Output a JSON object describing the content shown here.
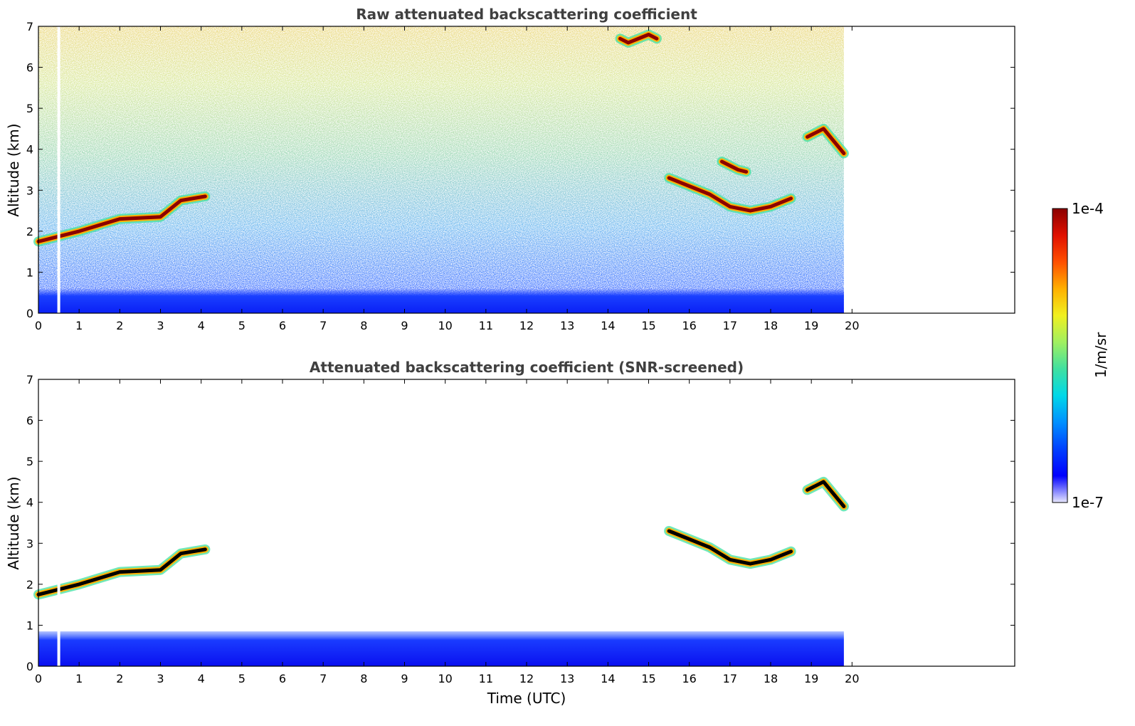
{
  "chart_data": [
    {
      "type": "heatmap",
      "id": "raw",
      "title": "Raw attenuated backscattering coefficient",
      "xlabel": "",
      "ylabel": "Altitude (km)",
      "xlim": [
        0,
        24
      ],
      "ylim": [
        0,
        7
      ],
      "xticks": [
        0,
        1,
        2,
        3,
        4,
        5,
        6,
        7,
        8,
        9,
        10,
        11,
        12,
        13,
        14,
        15,
        16,
        17,
        18,
        19,
        20
      ],
      "yticks": [
        0,
        1,
        2,
        3,
        4,
        5,
        6,
        7
      ],
      "data_end_time": 19.8,
      "gap_time": 0.5,
      "layers": [
        {
          "name": "boundary layer",
          "t_start": 0,
          "t_end": 19.8,
          "alt_km": [
            0,
            0.6
          ]
        },
        {
          "name": "morning cloud",
          "t": [
            0,
            1,
            2,
            3,
            3.5,
            4.1
          ],
          "alt_km": [
            1.75,
            2.0,
            2.3,
            2.35,
            2.75,
            2.85
          ]
        },
        {
          "name": "afternoon cloud",
          "t": [
            15.5,
            16.0,
            16.5,
            17.0,
            17.5,
            18.0,
            18.5
          ],
          "alt_km": [
            3.3,
            3.1,
            2.9,
            2.6,
            2.5,
            2.6,
            2.8
          ]
        },
        {
          "name": "upper cloud",
          "t": [
            16.8,
            17.2,
            17.4
          ],
          "alt_km": [
            3.7,
            3.5,
            3.45
          ]
        },
        {
          "name": "evening cloud",
          "t": [
            18.9,
            19.3,
            19.8
          ],
          "alt_km": [
            4.3,
            4.5,
            3.9
          ]
        },
        {
          "name": "high patch",
          "t": [
            14.3,
            14.5,
            15.0,
            15.2
          ],
          "alt_km": [
            6.7,
            6.6,
            6.8,
            6.7
          ]
        }
      ]
    },
    {
      "type": "heatmap",
      "id": "snr",
      "title": "Attenuated backscattering coefficient (SNR-screened)",
      "xlabel": "Time (UTC)",
      "ylabel": "Altitude (km)",
      "xlim": [
        0,
        24
      ],
      "ylim": [
        0,
        7
      ],
      "xticks": [
        0,
        1,
        2,
        3,
        4,
        5,
        6,
        7,
        8,
        9,
        10,
        11,
        12,
        13,
        14,
        15,
        16,
        17,
        18,
        19,
        20
      ],
      "yticks": [
        0,
        1,
        2,
        3,
        4,
        5,
        6,
        7
      ],
      "data_end_time": 19.8,
      "gap_time": 0.5,
      "layers": [
        {
          "name": "boundary layer",
          "t_start": 0,
          "t_end": 19.8,
          "alt_km": [
            0,
            0.85
          ]
        },
        {
          "name": "morning cloud",
          "t": [
            0,
            1,
            2,
            3,
            3.5,
            4.1
          ],
          "alt_km": [
            1.75,
            2.0,
            2.3,
            2.35,
            2.75,
            2.85
          ]
        },
        {
          "name": "afternoon cloud",
          "t": [
            15.5,
            16.0,
            16.5,
            17.0,
            17.5,
            18.0,
            18.5
          ],
          "alt_km": [
            3.3,
            3.1,
            2.9,
            2.6,
            2.5,
            2.6,
            2.8
          ]
        },
        {
          "name": "evening cloud",
          "t": [
            18.9,
            19.3,
            19.8
          ],
          "alt_km": [
            4.3,
            4.5,
            3.9
          ]
        }
      ]
    }
  ],
  "colorbar": {
    "label": "1/m/sr",
    "max_label": "1e-4",
    "min_label": "1e-7",
    "range": [
      1e-07,
      0.0001
    ],
    "colors": [
      "#e8e8ff",
      "#0000ff",
      "#0040ff",
      "#0090ff",
      "#00d8e8",
      "#40e0a0",
      "#a0f060",
      "#f0f020",
      "#ffb000",
      "#ff5000",
      "#e01000",
      "#8b0000"
    ]
  }
}
